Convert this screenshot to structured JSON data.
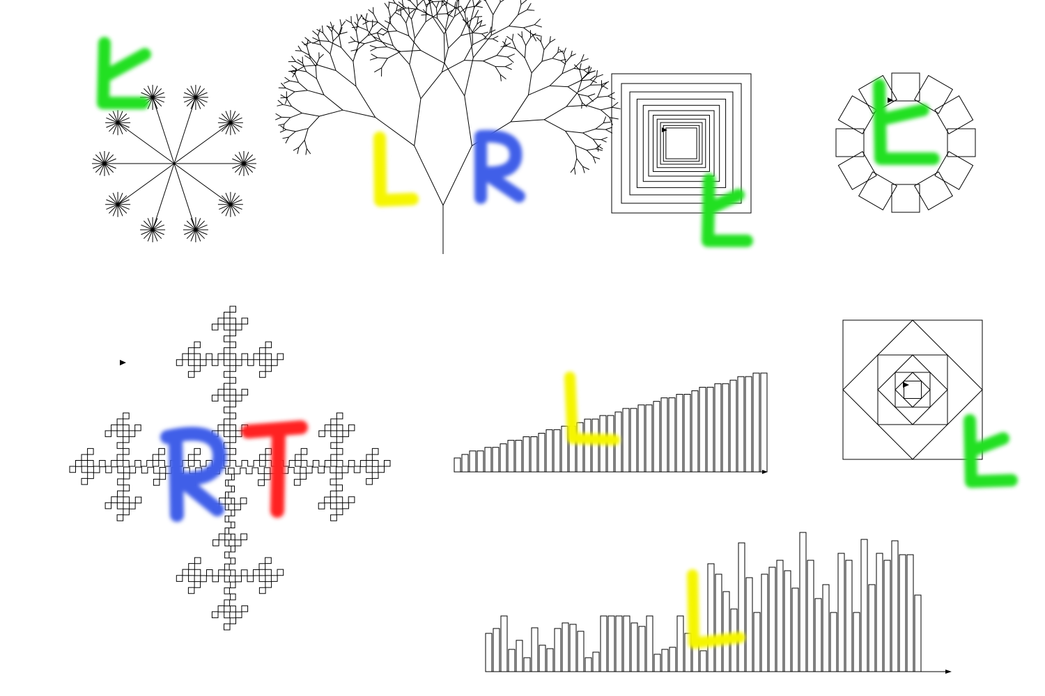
{
  "colors": {
    "green": "#22e022",
    "yellow": "#f5f500",
    "blue": "#3f5fe8",
    "red": "#ff2020",
    "ink": "#000000"
  },
  "figures": [
    {
      "name": "star-burst",
      "icon": "asterisk-icon",
      "marks": [
        "L"
      ],
      "mark_colors": [
        "green"
      ]
    },
    {
      "name": "binary-tree",
      "icon": "tree-icon",
      "marks": [
        "L",
        "R"
      ],
      "mark_colors": [
        "yellow",
        "blue"
      ]
    },
    {
      "name": "nested-squares",
      "icon": "square-spiral-icon",
      "marks": [
        "L"
      ],
      "mark_colors": [
        "green"
      ]
    },
    {
      "name": "square-ring",
      "icon": "ring-icon",
      "marks": [
        "L"
      ],
      "mark_colors": [
        "green"
      ]
    },
    {
      "name": "koch-island",
      "icon": "fractal-icon",
      "marks": [
        "R",
        "T"
      ],
      "mark_colors": [
        "blue",
        "red"
      ]
    },
    {
      "name": "sorted-bars",
      "icon": "bar-chart-icon",
      "marks": [
        "L"
      ],
      "mark_colors": [
        "yellow"
      ]
    },
    {
      "name": "rotated-squares",
      "icon": "diamond-icon",
      "marks": [
        "L"
      ],
      "mark_colors": [
        "green"
      ]
    },
    {
      "name": "random-bars",
      "icon": "bar-chart-icon",
      "marks": [
        "L"
      ],
      "mark_colors": [
        "yellow"
      ]
    }
  ],
  "labels": {
    "mark_L": "L",
    "mark_R": "R",
    "mark_T": "T"
  }
}
